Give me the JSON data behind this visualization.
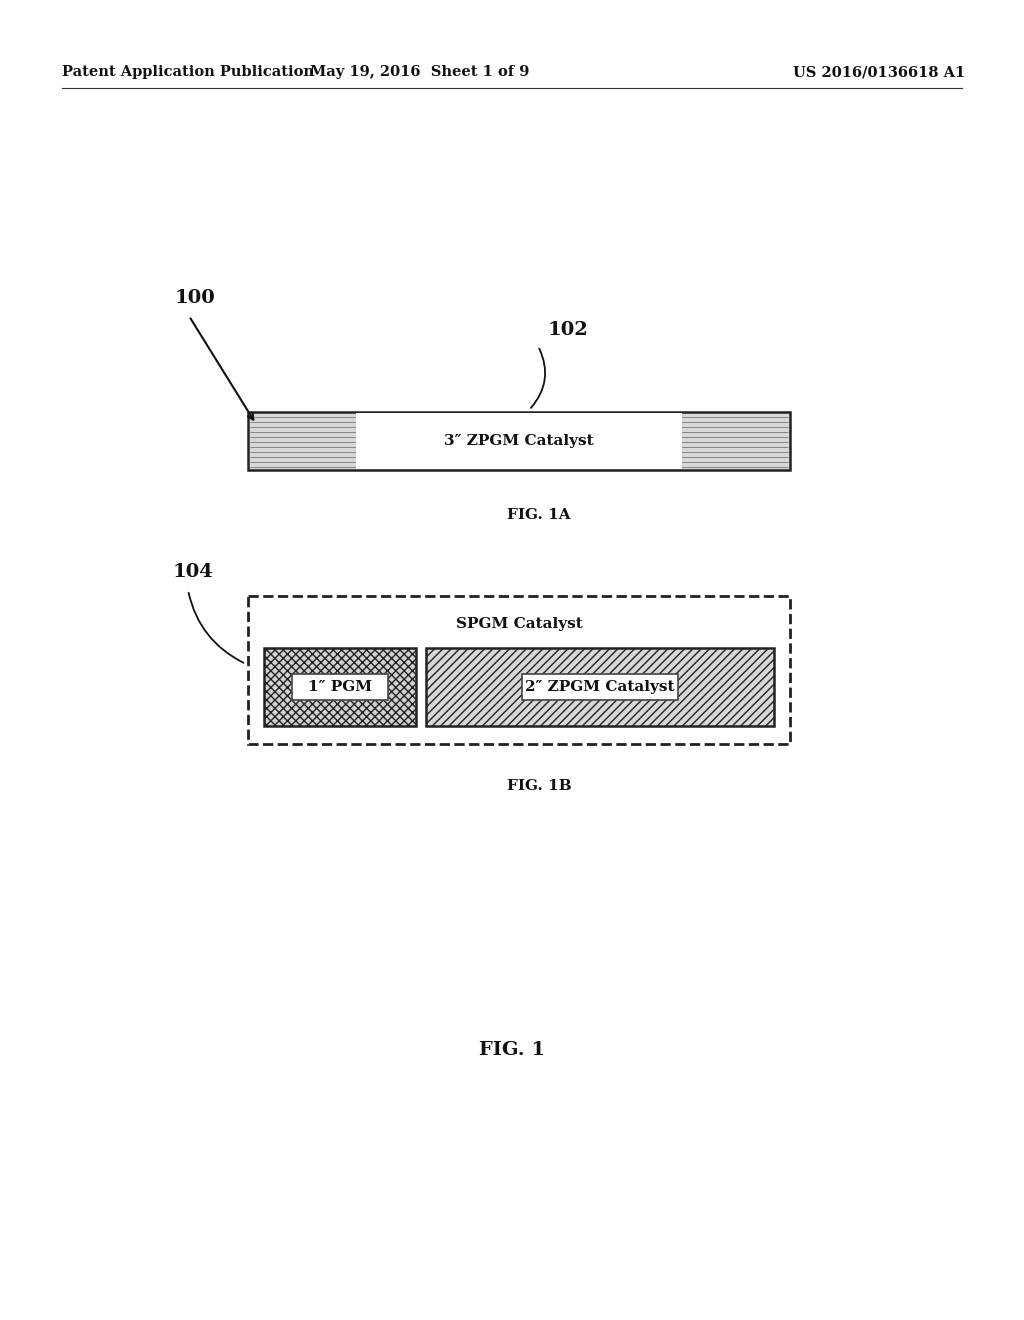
{
  "bg_color": "#ffffff",
  "header_left": "Patent Application Publication",
  "header_mid": "May 19, 2016  Sheet 1 of 9",
  "header_right": "US 2016/0136618 A1",
  "header_fontsize": 10.5,
  "fig1a_label": "FIG. 1A",
  "fig1b_label": "FIG. 1B",
  "fig1_label": "FIG. 1",
  "label_100": "100",
  "label_102": "102",
  "label_104": "104",
  "zpgm_text": "3″ ZPGM Catalyst",
  "spgm_text": "SPGM Catalyst",
  "pgm_text": "1″ PGM",
  "zpgm2_text": "2″ ZPGM Catalyst",
  "diagram_fontsize": 11,
  "ref_fontsize": 14,
  "fig_label_fontsize": 11
}
